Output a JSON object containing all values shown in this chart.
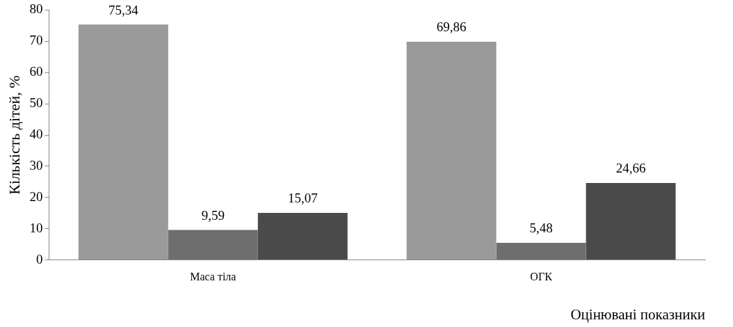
{
  "chart_data": {
    "type": "bar",
    "ylabel": "Кількість дітей, %",
    "xlabel": "Оцінювані показники",
    "categories": [
      "Маса тіла",
      "ОГК"
    ],
    "series": [
      {
        "color": "#9a9a9a",
        "values": [
          75.34,
          69.86
        ],
        "value_labels": [
          "75,34",
          "69,86"
        ]
      },
      {
        "color": "#6e6e6e",
        "values": [
          9.59,
          5.48
        ],
        "value_labels": [
          "9,59",
          "5,48"
        ]
      },
      {
        "color": "#4a4a4a",
        "values": [
          15.07,
          24.66
        ],
        "value_labels": [
          "15,07",
          "24,66"
        ]
      }
    ],
    "ylim": [
      0,
      80
    ],
    "yticks": [
      0,
      10,
      20,
      30,
      40,
      50,
      60,
      70,
      80
    ],
    "grid": false,
    "legend": false
  }
}
